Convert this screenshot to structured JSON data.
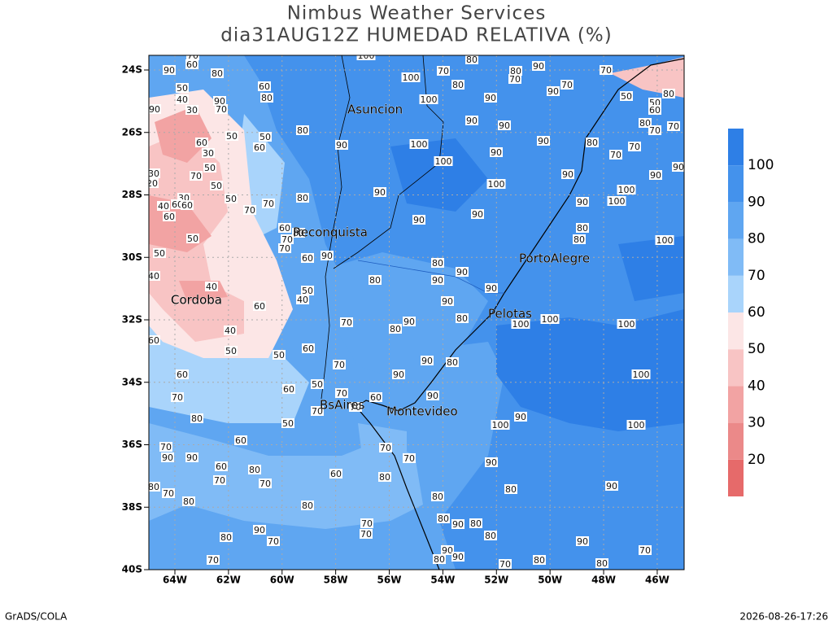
{
  "header": {
    "title": "Nimbus Weather Services",
    "subtitle": "dia31AUG12Z HUMEDAD RELATIVA (%)"
  },
  "map": {
    "lat_ticks": [
      {
        "value": -24,
        "label": "24S"
      },
      {
        "value": -26,
        "label": "26S"
      },
      {
        "value": -28,
        "label": "28S"
      },
      {
        "value": -30,
        "label": "30S"
      },
      {
        "value": -32,
        "label": "32S"
      },
      {
        "value": -34,
        "label": "34S"
      },
      {
        "value": -36,
        "label": "36S"
      },
      {
        "value": -38,
        "label": "38S"
      },
      {
        "value": -40,
        "label": "40S"
      }
    ],
    "lon_ticks": [
      {
        "value": -64,
        "label": "64W"
      },
      {
        "value": -62,
        "label": "62W"
      },
      {
        "value": -60,
        "label": "60W"
      },
      {
        "value": -58,
        "label": "58W"
      },
      {
        "value": -56,
        "label": "56W"
      },
      {
        "value": -54,
        "label": "54W"
      },
      {
        "value": -52,
        "label": "52W"
      },
      {
        "value": -50,
        "label": "50W"
      },
      {
        "value": -48,
        "label": "48W"
      },
      {
        "value": -46,
        "label": "46W"
      }
    ],
    "cities": [
      "Asuncion",
      "Reconquista",
      "Cordoba",
      "PortoAlegre",
      "Pelotas",
      "BsAires",
      "Montevideo"
    ],
    "contour_labels": [
      100,
      100,
      100,
      70,
      80,
      80,
      80,
      90,
      70,
      90,
      70,
      90,
      70,
      50,
      50,
      80,
      60,
      80,
      70,
      70,
      70,
      70,
      80,
      90,
      90,
      90,
      100,
      100,
      90,
      80,
      80,
      100,
      90,
      90,
      90,
      90,
      100,
      100,
      100,
      90,
      90,
      90,
      90,
      80,
      80,
      70,
      70,
      60,
      70,
      80,
      70,
      60,
      90,
      80,
      90,
      90,
      90,
      90,
      80,
      80,
      70,
      80,
      90,
      90,
      80,
      90,
      90,
      100,
      100,
      100,
      100,
      100,
      90,
      100,
      90,
      80,
      90,
      80,
      80,
      90,
      80,
      80,
      90,
      80,
      90,
      80,
      90,
      70,
      80,
      70,
      70,
      70,
      80,
      60,
      80,
      70,
      70,
      70,
      90,
      80,
      70,
      80,
      70,
      80,
      90,
      90,
      70,
      60,
      80,
      70,
      60,
      80,
      70,
      60,
      70,
      50,
      60,
      50,
      60,
      70,
      50,
      70,
      70,
      60,
      70,
      50,
      40,
      40,
      50,
      40,
      50,
      60,
      60,
      40,
      50,
      90,
      70,
      60,
      50,
      40,
      30,
      90,
      80,
      90,
      70,
      60,
      80,
      50,
      60,
      50,
      60,
      30,
      50,
      70,
      50,
      30,
      60,
      40,
      60,
      30,
      20,
      50,
      60
    ]
  },
  "colorbar": {
    "labels": [
      20,
      30,
      40,
      50,
      60,
      70,
      80,
      90,
      100
    ],
    "colors": [
      "#e66a6a",
      "#eb8989",
      "#f2a3a3",
      "#f8c4c4",
      "#fce6e6",
      "#a9d4fb",
      "#80bbf6",
      "#5fa6f1",
      "#4492ec",
      "#2e7fe6"
    ]
  },
  "footer": {
    "left": "GrADS/COLA",
    "right": "2026-08-26-17:26"
  }
}
